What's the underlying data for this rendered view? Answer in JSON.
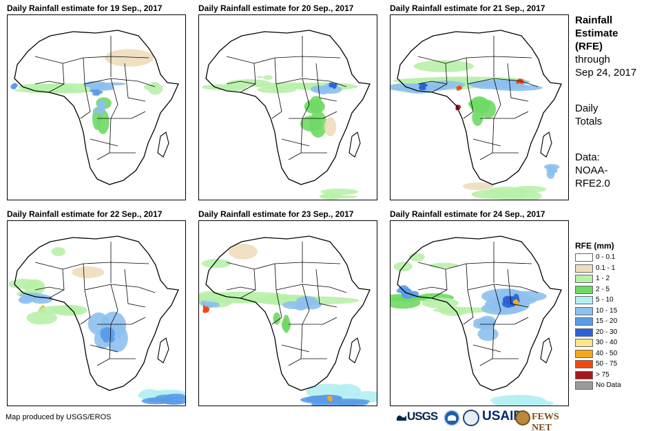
{
  "panels": [
    {
      "title": "Daily Rainfall estimate for 19 Sep., 2017"
    },
    {
      "title": "Daily Rainfall estimate for 20 Sep., 2017"
    },
    {
      "title": "Daily Rainfall estimate for 21 Sep., 2017"
    },
    {
      "title": "Daily Rainfall estimate for 22 Sep., 2017"
    },
    {
      "title": "Daily Rainfall estimate for 23 Sep., 2017"
    },
    {
      "title": "Daily Rainfall estimate for 24 Sep., 2017"
    }
  ],
  "side": {
    "title_line1": "Rainfall",
    "title_line2": "Estimate",
    "title_line3": "(RFE)",
    "through_line1": "through",
    "through_line2": "Sep 24, 2017",
    "period_line1": "Daily",
    "period_line2": "Totals",
    "source_line1": "Data:",
    "source_line2": "NOAA-",
    "source_line3": "RFE2.0"
  },
  "legend": {
    "title": "RFE (mm)",
    "items": [
      {
        "label": "0 - 0.1",
        "color": "#ffffff"
      },
      {
        "label": "0.1 - 1",
        "color": "#efdcbc"
      },
      {
        "label": "1 - 2",
        "color": "#b8f0a8"
      },
      {
        "label": "2 - 5",
        "color": "#6fd964"
      },
      {
        "label": "5 - 10",
        "color": "#b4eef2"
      },
      {
        "label": "10 - 15",
        "color": "#8ec0ee"
      },
      {
        "label": "15 - 20",
        "color": "#5b9ce8"
      },
      {
        "label": "20 - 30",
        "color": "#2a62d6"
      },
      {
        "label": "30 - 40",
        "color": "#fde58a"
      },
      {
        "label": "40 - 50",
        "color": "#f3a81b"
      },
      {
        "label": "50 - 75",
        "color": "#f04a10"
      },
      {
        "label": "> 75",
        "color": "#a8171f"
      },
      {
        "label": "No Data",
        "color": "#9a9a9a"
      }
    ]
  },
  "credit": "Map produced by USGS/EROS",
  "logos": {
    "usgs": "USGS",
    "usaid": "USAID",
    "fews": "FEWS NET"
  }
}
